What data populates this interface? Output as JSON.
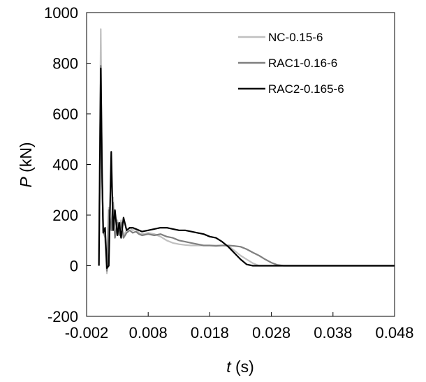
{
  "chart_data": {
    "type": "line",
    "title": "",
    "xlabel": {
      "symbol": "t",
      "unit": " (s)"
    },
    "ylabel": {
      "symbol": "P",
      "unit": " (kN)"
    },
    "xlim": [
      -0.002,
      0.048
    ],
    "ylim": [
      -200,
      1000
    ],
    "xticks": [
      -0.002,
      0.008,
      0.018,
      0.028,
      0.038,
      0.048
    ],
    "xtick_labels": [
      "-0.002",
      "0.008",
      "0.018",
      "0.028",
      "0.038",
      "0.048"
    ],
    "yticks": [
      -200,
      0,
      200,
      400,
      600,
      800,
      1000
    ],
    "ytick_labels": [
      "-200",
      "0",
      "200",
      "400",
      "600",
      "800",
      "1000"
    ],
    "grid": false,
    "legend_position": "top-right",
    "series": [
      {
        "name": "NC-0.15-6",
        "color": "#c0c0c0",
        "x": [
          0.0,
          0.0003,
          0.0005,
          0.0007,
          0.001,
          0.0013,
          0.0016,
          0.002,
          0.0023,
          0.0026,
          0.003,
          0.0033,
          0.0036,
          0.004,
          0.0045,
          0.005,
          0.0055,
          0.006,
          0.0065,
          0.007,
          0.008,
          0.009,
          0.01,
          0.011,
          0.012,
          0.013,
          0.014,
          0.015,
          0.016,
          0.017,
          0.018,
          0.019,
          0.02,
          0.021,
          0.022,
          0.023,
          0.024,
          0.025,
          0.026,
          0.0265,
          0.027,
          0.03,
          0.035,
          0.04,
          0.045,
          0.048
        ],
        "y": [
          0,
          935,
          400,
          130,
          120,
          -30,
          230,
          150,
          270,
          120,
          180,
          130,
          180,
          120,
          140,
          150,
          140,
          145,
          130,
          125,
          130,
          125,
          115,
          100,
          90,
          85,
          82,
          80,
          80,
          80,
          80,
          80,
          80,
          78,
          60,
          40,
          25,
          10,
          0,
          0,
          0,
          0,
          0,
          0,
          0,
          0
        ]
      },
      {
        "name": "RAC1-0.16-6",
        "color": "#808080",
        "x": [
          0.0,
          0.0003,
          0.0005,
          0.0007,
          0.001,
          0.0013,
          0.0016,
          0.002,
          0.0023,
          0.0026,
          0.003,
          0.0033,
          0.0036,
          0.004,
          0.0045,
          0.005,
          0.0055,
          0.006,
          0.0065,
          0.007,
          0.008,
          0.009,
          0.01,
          0.011,
          0.012,
          0.013,
          0.014,
          0.015,
          0.016,
          0.017,
          0.018,
          0.019,
          0.02,
          0.021,
          0.022,
          0.023,
          0.024,
          0.025,
          0.026,
          0.027,
          0.028,
          0.029,
          0.03,
          0.035,
          0.04,
          0.045,
          0.048
        ],
        "y": [
          0,
          790,
          360,
          140,
          110,
          -20,
          220,
          140,
          250,
          110,
          170,
          120,
          170,
          110,
          130,
          140,
          130,
          135,
          125,
          120,
          125,
          120,
          125,
          115,
          110,
          100,
          95,
          90,
          85,
          80,
          80,
          78,
          80,
          80,
          78,
          75,
          65,
          52,
          40,
          25,
          12,
          3,
          0,
          0,
          0,
          0,
          0
        ]
      },
      {
        "name": "RAC2-0.165-6",
        "color": "#000000",
        "x": [
          0.0,
          0.0003,
          0.0005,
          0.0007,
          0.001,
          0.0013,
          0.0016,
          0.002,
          0.0023,
          0.0026,
          0.003,
          0.0033,
          0.0036,
          0.004,
          0.0045,
          0.005,
          0.0055,
          0.006,
          0.0065,
          0.007,
          0.008,
          0.009,
          0.01,
          0.011,
          0.012,
          0.013,
          0.014,
          0.015,
          0.016,
          0.017,
          0.018,
          0.019,
          0.02,
          0.021,
          0.022,
          0.023,
          0.024,
          0.025,
          0.03,
          0.035,
          0.04,
          0.045,
          0.048
        ],
        "y": [
          0,
          780,
          370,
          130,
          150,
          -10,
          0,
          450,
          140,
          220,
          120,
          170,
          110,
          190,
          140,
          150,
          150,
          145,
          140,
          135,
          140,
          145,
          150,
          150,
          145,
          140,
          140,
          135,
          130,
          125,
          115,
          110,
          95,
          75,
          50,
          25,
          5,
          0,
          0,
          0,
          0,
          0,
          0
        ]
      }
    ]
  }
}
